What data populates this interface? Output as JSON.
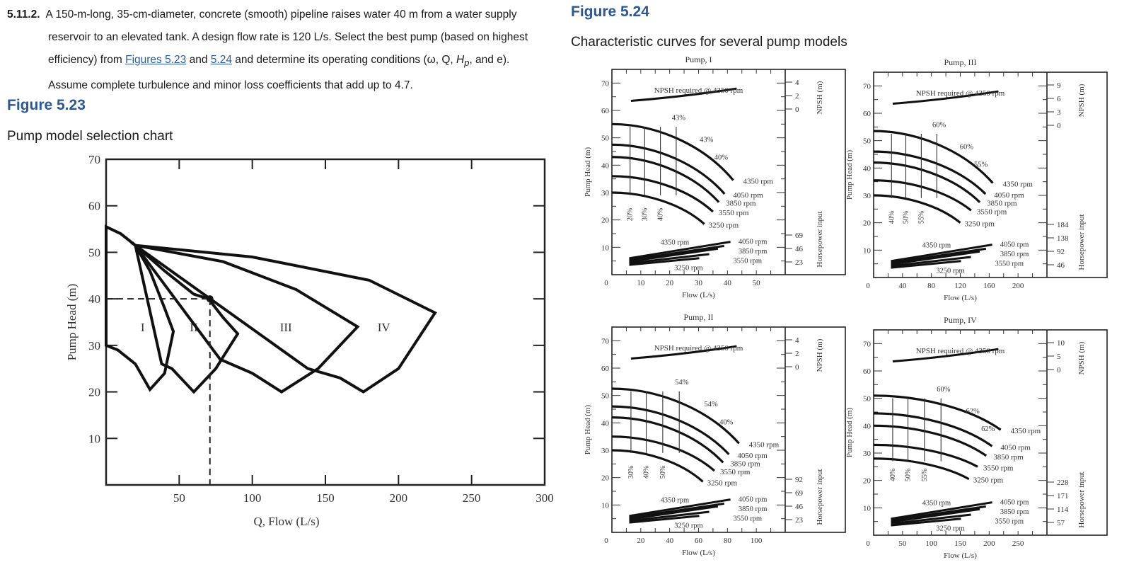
{
  "problem": {
    "number": "5.11.2.",
    "line1": "A 150-m-long, 35-cm-diameter, concrete (smooth) pipeline raises water 40 m from a water supply",
    "line2": "reservoir to an elevated tank. A design flow rate is 120 L/s. Select the best pump (based on highest",
    "line3_pre": "efficiency) from ",
    "link1": "Figures 5.23",
    "line3_mid": " and ",
    "link2": "5.24",
    "line3_post": " and determine its operating conditions (ω, Q, ",
    "hp_symbol": "H",
    "hp_sub": "p",
    "line3_end": ", and e).",
    "line4": "Assume complete turbulence and minor loss coefficients that add up to 4.7."
  },
  "figure_523": {
    "title": "Figure 5.23",
    "caption": "Pump model selection chart"
  },
  "figure_524": {
    "title": "Figure 5.24",
    "caption": "Characteristic curves for several pump models"
  },
  "chart_data": [
    {
      "type": "area",
      "title": "Pump model selection chart",
      "xlabel": "Q, Flow (L/s)",
      "ylabel": "Pump Head (m)",
      "xlim": [
        0,
        300
      ],
      "ylim": [
        0,
        70
      ],
      "x_ticks": [
        50,
        100,
        150,
        200,
        250,
        300
      ],
      "y_ticks": [
        10,
        20,
        30,
        40,
        50,
        60,
        70
      ],
      "regions": [
        {
          "name": "I",
          "label_at": [
            25,
            33
          ],
          "outline": [
            [
              0,
              55.5
            ],
            [
              10,
              54
            ],
            [
              20,
              51.5
            ],
            [
              30,
              46
            ],
            [
              40,
              38
            ],
            [
              46,
              33
            ],
            [
              40,
              24
            ],
            [
              30,
              20.5
            ],
            [
              20,
              26
            ],
            [
              8,
              29
            ],
            [
              0,
              30
            ]
          ]
        },
        {
          "name": "II",
          "label_at": [
            60,
            33
          ],
          "outline": [
            [
              20,
              51.5
            ],
            [
              40,
              46
            ],
            [
              60,
              41
            ],
            [
              70,
              40
            ],
            [
              80,
              36
            ],
            [
              90,
              32.5
            ],
            [
              75,
              25
            ],
            [
              60,
              20
            ],
            [
              45,
              25
            ],
            [
              38,
              26
            ]
          ]
        },
        {
          "name": "III",
          "label_at": [
            123,
            33
          ],
          "outline": [
            [
              20,
              51.5
            ],
            [
              80,
              48
            ],
            [
              130,
              42
            ],
            [
              172,
              34
            ],
            [
              145,
              25
            ],
            [
              120,
              20
            ],
            [
              100,
              24
            ],
            [
              78,
              27
            ]
          ]
        },
        {
          "name": "IV",
          "label_at": [
            190,
            33
          ],
          "outline": [
            [
              20,
              51.5
            ],
            [
              100,
              49
            ],
            [
              180,
              44
            ],
            [
              225,
              37
            ],
            [
              200,
              25
            ],
            [
              176,
              20
            ],
            [
              160,
              23
            ],
            [
              138,
              25
            ]
          ]
        }
      ],
      "annotation": {
        "point": [
          71,
          40
        ],
        "dashed_guides": true
      }
    },
    {
      "type": "line",
      "title": "Pump, I",
      "xlabel": "Flow (L/s)",
      "ylabel": "Pump Head (m)",
      "xlim": [
        0,
        60
      ],
      "ylim": [
        0,
        75
      ],
      "x_ticks": [
        0,
        10,
        20,
        30,
        40,
        50
      ],
      "y_ticks": [
        10,
        20,
        30,
        40,
        50,
        60,
        70
      ],
      "right_axis_npsh": {
        "label": "NPSH (m)",
        "ticks": [
          "4",
          "2",
          "0"
        ]
      },
      "right_axis_hp": {
        "label": "Horsepower input",
        "ticks": [
          "69",
          "46",
          "23"
        ]
      },
      "npsh_label": "NPSH required @ 4350 rpm",
      "head_curves": [
        {
          "rpm": "4350 rpm",
          "shutoff": 55,
          "end": [
            42,
            34.5
          ]
        },
        {
          "rpm": "4050 rpm",
          "shutoff": 47.5,
          "end": [
            39,
            29.5
          ]
        },
        {
          "rpm": "3850 rpm",
          "shutoff": 43,
          "end": [
            37,
            26.5
          ]
        },
        {
          "rpm": "3550 rpm",
          "shutoff": 36,
          "end": [
            35,
            23
          ]
        },
        {
          "rpm": "3250 rpm",
          "shutoff": 30,
          "end": [
            32,
            18.5
          ]
        }
      ],
      "efficiency_labels": [
        "20%",
        "30%",
        "40%",
        "43%",
        "43%",
        "40%"
      ],
      "hp_labels": [
        "4350 rpm",
        "4050 rpm",
        "3850 rpm",
        "3550 rpm",
        "3250 rpm"
      ]
    },
    {
      "type": "line",
      "title": "Pump, III",
      "xlabel": "Flow (L/s)",
      "ylabel": "Pump Head (m)",
      "xlim": [
        0,
        240
      ],
      "ylim": [
        0,
        75
      ],
      "x_ticks": [
        0,
        40,
        80,
        120,
        160,
        200
      ],
      "y_ticks": [
        10,
        20,
        30,
        40,
        50,
        60,
        70
      ],
      "right_axis_npsh": {
        "label": "NPSH (m)",
        "ticks": [
          "9",
          "6",
          "3",
          "0"
        ]
      },
      "right_axis_hp": {
        "label": "Horsepower input",
        "ticks": [
          "184",
          "138",
          "92",
          "46"
        ]
      },
      "npsh_label": "NPSH required @ 4350 rpm",
      "head_curves": [
        {
          "rpm": "4350 rpm",
          "shutoff": 53.5,
          "end": [
            165,
            34.5
          ]
        },
        {
          "rpm": "4050 rpm",
          "shutoff": 46,
          "end": [
            155,
            30.5
          ]
        },
        {
          "rpm": "3850 rpm",
          "shutoff": 42,
          "end": [
            147,
            27.5
          ]
        },
        {
          "rpm": "3550 rpm",
          "shutoff": 35.5,
          "end": [
            135,
            24.5
          ]
        },
        {
          "rpm": "3250 rpm",
          "shutoff": 30,
          "end": [
            120,
            20
          ]
        }
      ],
      "efficiency_labels": [
        "40%",
        "50%",
        "55%",
        "60%",
        "60%",
        "55%"
      ],
      "hp_labels": [
        "4350 rpm",
        "4050 rpm",
        "3850 rpm",
        "3550 rpm",
        "3250 rpm"
      ]
    },
    {
      "type": "line",
      "title": "Pump, II",
      "xlabel": "Flow (L/s)",
      "ylabel": "Pump Head (m)",
      "xlim": [
        0,
        120
      ],
      "ylim": [
        0,
        75
      ],
      "x_ticks": [
        0,
        20,
        40,
        60,
        80,
        100
      ],
      "y_ticks": [
        10,
        20,
        30,
        40,
        50,
        60,
        70
      ],
      "right_axis_npsh": {
        "label": "NPSH (m)",
        "ticks": [
          "4",
          "2",
          "0"
        ]
      },
      "right_axis_hp": {
        "label": "Horsepower input",
        "ticks": [
          "92",
          "69",
          "46",
          "23"
        ]
      },
      "npsh_label": "NPSH required @ 4350 rpm",
      "head_curves": [
        {
          "rpm": "4350 rpm",
          "shutoff": 52.5,
          "end": [
            88,
            32.5
          ]
        },
        {
          "rpm": "4050 rpm",
          "shutoff": 46,
          "end": [
            81,
            28.5
          ]
        },
        {
          "rpm": "3850 rpm",
          "shutoff": 42,
          "end": [
            77,
            25.5
          ]
        },
        {
          "rpm": "3550 rpm",
          "shutoff": 35,
          "end": [
            71,
            22.5
          ]
        },
        {
          "rpm": "3250 rpm",
          "shutoff": 30,
          "end": [
            63,
            18.5
          ]
        }
      ],
      "efficiency_labels": [
        "30%",
        "40%",
        "50%",
        "54%",
        "54%",
        "40%"
      ],
      "hp_labels": [
        "4350 rpm",
        "4050 rpm",
        "3850 rpm",
        "3550 rpm",
        "3250 rpm"
      ]
    },
    {
      "type": "line",
      "title": "Pump, IV",
      "xlabel": "Flow (L/s)",
      "ylabel": "Pump Head (m)",
      "xlim": [
        0,
        300
      ],
      "ylim": [
        0,
        75
      ],
      "x_ticks": [
        0,
        50,
        100,
        150,
        200,
        250
      ],
      "y_ticks": [
        10,
        20,
        30,
        40,
        50,
        60,
        70
      ],
      "right_axis_npsh": {
        "label": "NPSH (m)",
        "ticks": [
          "10",
          "5",
          "0"
        ]
      },
      "right_axis_hp": {
        "label": "Horsepower input",
        "ticks": [
          "228",
          "171",
          "114",
          "57"
        ]
      },
      "npsh_label": "NPSH required @ 4350 rpm",
      "head_curves": [
        {
          "rpm": "4350 rpm",
          "shutoff": 51,
          "end": [
            220,
            38.5
          ]
        },
        {
          "rpm": "4050 rpm",
          "shutoff": 44.5,
          "end": [
            205,
            32.5
          ]
        },
        {
          "rpm": "3850 rpm",
          "shutoff": 40,
          "end": [
            195,
            29
          ]
        },
        {
          "rpm": "3550 rpm",
          "shutoff": 33,
          "end": [
            180,
            25
          ]
        },
        {
          "rpm": "3250 rpm",
          "shutoff": 28,
          "end": [
            165,
            20.5
          ]
        }
      ],
      "efficiency_labels": [
        "40%",
        "50%",
        "55%",
        "60%",
        "62%",
        "62%"
      ],
      "hp_labels": [
        "4350 rpm",
        "4050 rpm",
        "3850 rpm",
        "3550 rpm",
        "3250 rpm"
      ]
    }
  ]
}
